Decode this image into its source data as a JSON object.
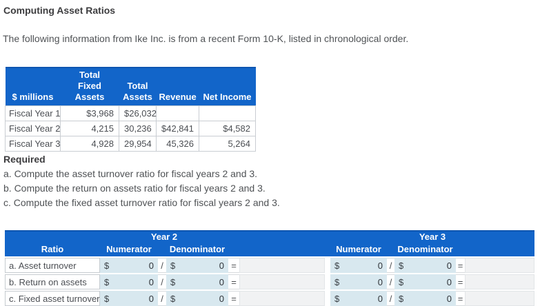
{
  "page": {
    "title": "Computing Asset Ratios",
    "intro": "The following information from Ike Inc. is from a recent Form 10-K, listed in chronological order."
  },
  "colors": {
    "header_blue": "#1265c9",
    "input_blue": "#d8e8ef",
    "result_gray": "#f1f2f3"
  },
  "data_table": {
    "columns": [
      {
        "top": "",
        "bottom": "$ millions"
      },
      {
        "top": "Total",
        "bottom": "Fixed Assets"
      },
      {
        "top": "Total",
        "bottom": "Assets"
      },
      {
        "top": "",
        "bottom": "Revenue"
      },
      {
        "top": "",
        "bottom": "Net Income"
      }
    ],
    "rows": [
      {
        "label": "Fiscal Year 1",
        "values": [
          "$3,968",
          "$26,032",
          "",
          ""
        ]
      },
      {
        "label": "Fiscal Year 2",
        "values": [
          "4,215",
          "30,236",
          "$42,841",
          "$4,582"
        ]
      },
      {
        "label": "Fiscal Year 3",
        "values": [
          "4,928",
          "29,954",
          "45,326",
          "5,264"
        ]
      }
    ]
  },
  "required": {
    "heading": "Required",
    "items": [
      "a. Compute the asset turnover ratio for fiscal years 2 and 3.",
      "b. Compute the return on assets ratio for fiscal years 2 and 3.",
      "c. Compute the fixed asset turnover ratio for fiscal years 2 and 3."
    ]
  },
  "answer_table": {
    "year2_label": "Year 2",
    "year3_label": "Year 3",
    "ratio_header": "Ratio",
    "numerator_header": "Numerator",
    "denominator_header": "Denominator",
    "symbols": {
      "dollar": "$",
      "slash": "/",
      "equals": "="
    },
    "rows": [
      {
        "label": "a. Asset turnover",
        "y2": {
          "num": "0",
          "den": "0",
          "result": ""
        },
        "y3": {
          "num": "0",
          "den": "0",
          "result": ""
        }
      },
      {
        "label": "b. Return on assets",
        "y2": {
          "num": "0",
          "den": "0",
          "result": ""
        },
        "y3": {
          "num": "0",
          "den": "0",
          "result": ""
        }
      },
      {
        "label": "c. Fixed asset turnover",
        "y2": {
          "num": "0",
          "den": "0",
          "result": ""
        },
        "y3": {
          "num": "0",
          "den": "0",
          "result": ""
        }
      }
    ]
  }
}
